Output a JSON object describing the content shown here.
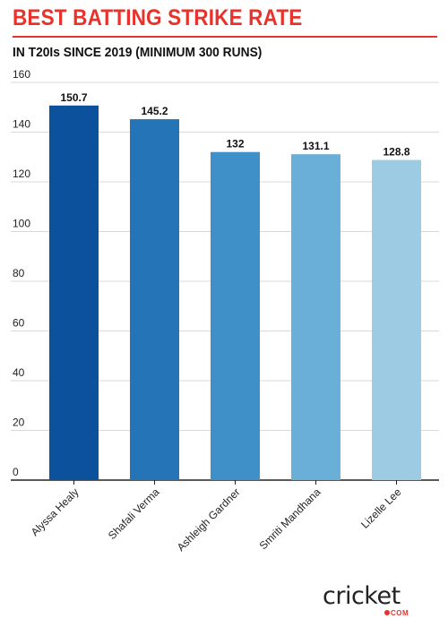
{
  "header": {
    "title": "BEST BATTING STRIKE RATE",
    "subtitle": "IN T20Is SINCE 2019 (MINIMUM 300 RUNS)"
  },
  "chart_data": {
    "type": "bar",
    "title": "BEST BATTING STRIKE RATE",
    "subtitle": "IN T20Is SINCE 2019 (MINIMUM 300 RUNS)",
    "categories": [
      "Alyssa Healy",
      "Shafali Verma",
      "Ashleigh Gardner",
      "Smriti Mandhana",
      "Lizelle Lee"
    ],
    "values": [
      150.7,
      145.2,
      132,
      131.1,
      128.8
    ],
    "value_labels": [
      "150.7",
      "145.2",
      "132",
      "131.1",
      "128.8"
    ],
    "colors": [
      "#0b519c",
      "#2574b8",
      "#3f8fc8",
      "#6aafd8",
      "#9dcbe3"
    ],
    "ylim": [
      0,
      160
    ],
    "yticks": [
      0,
      20,
      40,
      60,
      80,
      100,
      120,
      140,
      160
    ],
    "grid": true,
    "xlabel": "",
    "ylabel": ""
  },
  "brand": {
    "logo_text": "cricket",
    "logo_sub": "COM"
  }
}
